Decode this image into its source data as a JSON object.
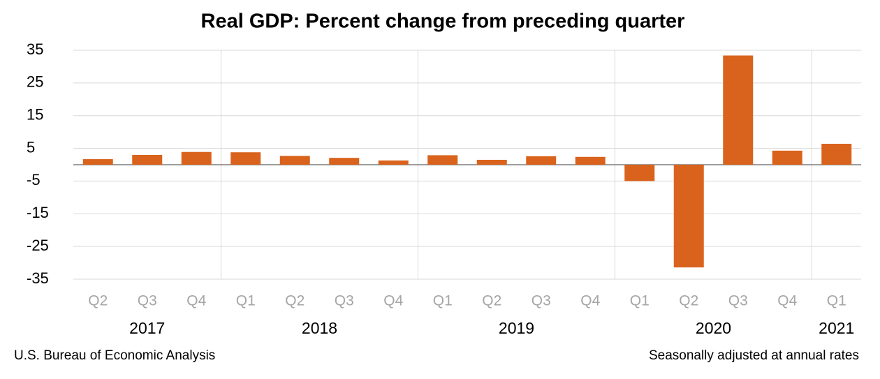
{
  "chart_data": {
    "type": "bar",
    "title": "Real GDP:  Percent change from preceding quarter",
    "categories": [
      "Q2",
      "Q3",
      "Q4",
      "Q1",
      "Q2",
      "Q3",
      "Q4",
      "Q1",
      "Q2",
      "Q3",
      "Q4",
      "Q1",
      "Q2",
      "Q3",
      "Q4",
      "Q1"
    ],
    "category_years": [
      "2017",
      "2017",
      "2017",
      "2018",
      "2018",
      "2018",
      "2018",
      "2019",
      "2019",
      "2019",
      "2019",
      "2020",
      "2020",
      "2020",
      "2020",
      "2021"
    ],
    "values": [
      1.7,
      3.0,
      3.9,
      3.8,
      2.7,
      2.1,
      1.3,
      2.9,
      1.5,
      2.6,
      2.4,
      -5.0,
      -31.4,
      33.4,
      4.3,
      6.4
    ],
    "color": "#d9631c",
    "ylim": [
      -35,
      35
    ],
    "yticks": [
      -35,
      -25,
      -15,
      -5,
      5,
      15,
      25,
      35
    ],
    "grid": true,
    "source": "U.S. Bureau of Economic Analysis",
    "note": "Seasonally adjusted at annual rates"
  }
}
